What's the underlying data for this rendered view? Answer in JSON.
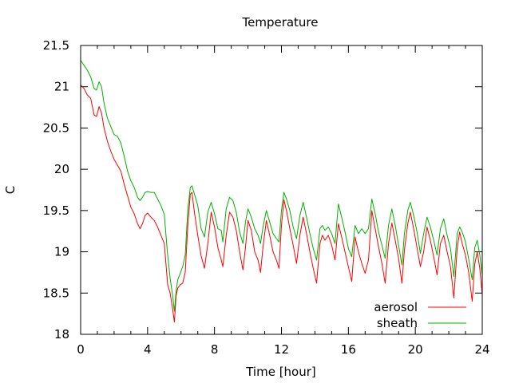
{
  "chart_data": {
    "type": "line",
    "title": "Temperature",
    "xlabel": "Time [hour]",
    "ylabel": "C",
    "xlim": [
      0,
      24
    ],
    "ylim": [
      18,
      21.5
    ],
    "xticks": [
      0,
      4,
      8,
      12,
      16,
      20,
      24
    ],
    "yticks": [
      18,
      18.5,
      19,
      19.5,
      20,
      20.5,
      21,
      21.5
    ],
    "grid": false,
    "legend_position": "bottom-right",
    "series": [
      {
        "name": "aerosol",
        "color": "#ff0000",
        "points": [
          [
            0.0,
            21.02
          ],
          [
            0.2,
            20.98
          ],
          [
            0.4,
            20.9
          ],
          [
            0.6,
            20.86
          ],
          [
            0.8,
            20.66
          ],
          [
            0.95,
            20.64
          ],
          [
            1.1,
            20.76
          ],
          [
            1.25,
            20.68
          ],
          [
            1.4,
            20.5
          ],
          [
            1.6,
            20.34
          ],
          [
            1.8,
            20.22
          ],
          [
            2.0,
            20.12
          ],
          [
            2.2,
            20.05
          ],
          [
            2.4,
            19.98
          ],
          [
            2.6,
            19.82
          ],
          [
            2.8,
            19.68
          ],
          [
            3.0,
            19.54
          ],
          [
            3.2,
            19.46
          ],
          [
            3.4,
            19.34
          ],
          [
            3.55,
            19.28
          ],
          [
            3.7,
            19.34
          ],
          [
            3.85,
            19.44
          ],
          [
            4.0,
            19.47
          ],
          [
            4.2,
            19.42
          ],
          [
            4.4,
            19.38
          ],
          [
            4.6,
            19.3
          ],
          [
            4.8,
            19.2
          ],
          [
            5.0,
            19.1
          ],
          [
            5.1,
            18.85
          ],
          [
            5.2,
            18.6
          ],
          [
            5.35,
            18.5
          ],
          [
            5.5,
            18.3
          ],
          [
            5.6,
            18.15
          ],
          [
            5.7,
            18.46
          ],
          [
            5.8,
            18.56
          ],
          [
            5.95,
            18.6
          ],
          [
            6.1,
            18.62
          ],
          [
            6.25,
            18.75
          ],
          [
            6.4,
            19.3
          ],
          [
            6.55,
            19.7
          ],
          [
            6.65,
            19.72
          ],
          [
            6.8,
            19.48
          ],
          [
            7.0,
            19.2
          ],
          [
            7.2,
            18.95
          ],
          [
            7.4,
            18.8
          ],
          [
            7.6,
            19.1
          ],
          [
            7.8,
            19.48
          ],
          [
            8.0,
            19.3
          ],
          [
            8.2,
            19.05
          ],
          [
            8.4,
            18.9
          ],
          [
            8.5,
            18.82
          ],
          [
            8.7,
            19.2
          ],
          [
            8.9,
            19.48
          ],
          [
            9.1,
            19.42
          ],
          [
            9.3,
            19.26
          ],
          [
            9.5,
            19.0
          ],
          [
            9.7,
            18.78
          ],
          [
            9.85,
            19.05
          ],
          [
            10.0,
            19.38
          ],
          [
            10.2,
            19.26
          ],
          [
            10.4,
            19.0
          ],
          [
            10.6,
            18.9
          ],
          [
            10.75,
            18.75
          ],
          [
            10.9,
            19.06
          ],
          [
            11.1,
            19.38
          ],
          [
            11.3,
            19.2
          ],
          [
            11.5,
            19.0
          ],
          [
            11.7,
            18.9
          ],
          [
            11.85,
            18.8
          ],
          [
            12.0,
            19.32
          ],
          [
            12.15,
            19.63
          ],
          [
            12.3,
            19.5
          ],
          [
            12.5,
            19.28
          ],
          [
            12.7,
            19.08
          ],
          [
            12.9,
            18.86
          ],
          [
            13.1,
            19.2
          ],
          [
            13.3,
            19.42
          ],
          [
            13.5,
            19.22
          ],
          [
            13.7,
            19.0
          ],
          [
            13.9,
            18.8
          ],
          [
            14.1,
            18.62
          ],
          [
            14.3,
            19.1
          ],
          [
            14.45,
            19.2
          ],
          [
            14.6,
            19.14
          ],
          [
            14.8,
            19.2
          ],
          [
            15.0,
            19.08
          ],
          [
            15.2,
            18.9
          ],
          [
            15.4,
            19.34
          ],
          [
            15.6,
            19.18
          ],
          [
            15.8,
            19.0
          ],
          [
            16.0,
            18.82
          ],
          [
            16.2,
            18.64
          ],
          [
            16.4,
            19.18
          ],
          [
            16.6,
            19.0
          ],
          [
            16.8,
            18.86
          ],
          [
            17.0,
            18.74
          ],
          [
            17.2,
            18.9
          ],
          [
            17.4,
            19.5
          ],
          [
            17.6,
            19.28
          ],
          [
            17.8,
            19.06
          ],
          [
            18.0,
            18.86
          ],
          [
            18.2,
            18.62
          ],
          [
            18.4,
            19.1
          ],
          [
            18.6,
            19.35
          ],
          [
            18.8,
            19.14
          ],
          [
            19.0,
            18.92
          ],
          [
            19.2,
            18.62
          ],
          [
            19.35,
            19.02
          ],
          [
            19.55,
            19.34
          ],
          [
            19.7,
            19.48
          ],
          [
            19.9,
            19.28
          ],
          [
            20.1,
            19.05
          ],
          [
            20.3,
            18.82
          ],
          [
            20.5,
            19.0
          ],
          [
            20.7,
            19.3
          ],
          [
            20.9,
            19.14
          ],
          [
            21.1,
            18.94
          ],
          [
            21.3,
            18.72
          ],
          [
            21.5,
            19.1
          ],
          [
            21.7,
            19.2
          ],
          [
            21.9,
            19.0
          ],
          [
            22.1,
            18.82
          ],
          [
            22.3,
            18.44
          ],
          [
            22.5,
            19.04
          ],
          [
            22.65,
            19.24
          ],
          [
            22.8,
            19.1
          ],
          [
            23.0,
            18.96
          ],
          [
            23.2,
            18.74
          ],
          [
            23.4,
            18.4
          ],
          [
            23.55,
            18.85
          ],
          [
            23.7,
            19.0
          ],
          [
            23.85,
            18.8
          ],
          [
            24.0,
            18.48
          ]
        ]
      },
      {
        "name": "sheath",
        "color": "#00b000",
        "points": [
          [
            0.0,
            21.32
          ],
          [
            0.2,
            21.26
          ],
          [
            0.4,
            21.2
          ],
          [
            0.6,
            21.12
          ],
          [
            0.8,
            20.98
          ],
          [
            0.95,
            20.96
          ],
          [
            1.1,
            21.06
          ],
          [
            1.25,
            21.0
          ],
          [
            1.4,
            20.8
          ],
          [
            1.6,
            20.62
          ],
          [
            1.8,
            20.52
          ],
          [
            2.0,
            20.42
          ],
          [
            2.2,
            20.4
          ],
          [
            2.4,
            20.32
          ],
          [
            2.6,
            20.16
          ],
          [
            2.8,
            19.98
          ],
          [
            3.0,
            19.86
          ],
          [
            3.2,
            19.78
          ],
          [
            3.4,
            19.66
          ],
          [
            3.55,
            19.62
          ],
          [
            3.7,
            19.66
          ],
          [
            3.85,
            19.72
          ],
          [
            4.0,
            19.73
          ],
          [
            4.2,
            19.72
          ],
          [
            4.4,
            19.72
          ],
          [
            4.6,
            19.64
          ],
          [
            4.8,
            19.56
          ],
          [
            5.0,
            19.45
          ],
          [
            5.1,
            19.2
          ],
          [
            5.2,
            18.96
          ],
          [
            5.35,
            18.68
          ],
          [
            5.5,
            18.46
          ],
          [
            5.6,
            18.28
          ],
          [
            5.7,
            18.52
          ],
          [
            5.8,
            18.66
          ],
          [
            5.95,
            18.74
          ],
          [
            6.1,
            18.82
          ],
          [
            6.25,
            18.96
          ],
          [
            6.4,
            19.5
          ],
          [
            6.55,
            19.78
          ],
          [
            6.65,
            19.8
          ],
          [
            6.8,
            19.7
          ],
          [
            7.0,
            19.56
          ],
          [
            7.2,
            19.28
          ],
          [
            7.4,
            19.18
          ],
          [
            7.6,
            19.48
          ],
          [
            7.8,
            19.6
          ],
          [
            8.0,
            19.46
          ],
          [
            8.2,
            19.28
          ],
          [
            8.4,
            19.26
          ],
          [
            8.5,
            19.12
          ],
          [
            8.7,
            19.52
          ],
          [
            8.9,
            19.66
          ],
          [
            9.1,
            19.62
          ],
          [
            9.3,
            19.48
          ],
          [
            9.5,
            19.24
          ],
          [
            9.7,
            19.1
          ],
          [
            9.85,
            19.36
          ],
          [
            10.0,
            19.52
          ],
          [
            10.2,
            19.42
          ],
          [
            10.4,
            19.28
          ],
          [
            10.6,
            19.2
          ],
          [
            10.75,
            19.1
          ],
          [
            10.9,
            19.3
          ],
          [
            11.1,
            19.5
          ],
          [
            11.3,
            19.36
          ],
          [
            11.5,
            19.22
          ],
          [
            11.7,
            19.16
          ],
          [
            11.85,
            19.12
          ],
          [
            12.0,
            19.5
          ],
          [
            12.15,
            19.72
          ],
          [
            12.3,
            19.64
          ],
          [
            12.5,
            19.5
          ],
          [
            12.7,
            19.3
          ],
          [
            12.9,
            19.16
          ],
          [
            13.1,
            19.44
          ],
          [
            13.3,
            19.6
          ],
          [
            13.5,
            19.42
          ],
          [
            13.7,
            19.22
          ],
          [
            13.9,
            19.04
          ],
          [
            14.1,
            18.9
          ],
          [
            14.3,
            19.28
          ],
          [
            14.45,
            19.32
          ],
          [
            14.6,
            19.26
          ],
          [
            14.8,
            19.3
          ],
          [
            15.0,
            19.22
          ],
          [
            15.2,
            19.1
          ],
          [
            15.4,
            19.58
          ],
          [
            15.6,
            19.42
          ],
          [
            15.8,
            19.24
          ],
          [
            16.0,
            19.04
          ],
          [
            16.2,
            18.94
          ],
          [
            16.4,
            19.32
          ],
          [
            16.6,
            19.22
          ],
          [
            16.8,
            19.28
          ],
          [
            17.0,
            19.22
          ],
          [
            17.2,
            19.28
          ],
          [
            17.4,
            19.64
          ],
          [
            17.6,
            19.46
          ],
          [
            17.8,
            19.24
          ],
          [
            18.0,
            19.08
          ],
          [
            18.2,
            18.92
          ],
          [
            18.4,
            19.32
          ],
          [
            18.6,
            19.52
          ],
          [
            18.8,
            19.32
          ],
          [
            19.0,
            19.08
          ],
          [
            19.2,
            18.84
          ],
          [
            19.35,
            19.22
          ],
          [
            19.55,
            19.5
          ],
          [
            19.7,
            19.6
          ],
          [
            19.9,
            19.44
          ],
          [
            20.1,
            19.24
          ],
          [
            20.3,
            18.98
          ],
          [
            20.5,
            19.22
          ],
          [
            20.7,
            19.42
          ],
          [
            20.9,
            19.3
          ],
          [
            21.1,
            19.14
          ],
          [
            21.3,
            18.96
          ],
          [
            21.5,
            19.28
          ],
          [
            21.7,
            19.4
          ],
          [
            21.9,
            19.2
          ],
          [
            22.1,
            19.04
          ],
          [
            22.3,
            18.7
          ],
          [
            22.5,
            19.22
          ],
          [
            22.65,
            19.3
          ],
          [
            22.8,
            19.24
          ],
          [
            23.0,
            19.12
          ],
          [
            23.2,
            18.9
          ],
          [
            23.4,
            18.66
          ],
          [
            23.55,
            19.05
          ],
          [
            23.7,
            19.14
          ],
          [
            23.85,
            18.96
          ],
          [
            24.0,
            18.72
          ]
        ]
      }
    ]
  }
}
